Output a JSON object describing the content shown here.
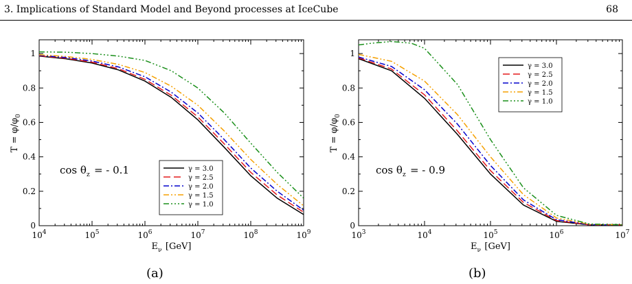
{
  "header": {
    "title": "3. Implications of Standard Model and Beyond processes at IceCube",
    "page_number": "68"
  },
  "captions": [
    "(a)",
    "(b)"
  ],
  "chart_data": [
    {
      "type": "line",
      "title": "",
      "xlabel": "Eν [GeV]",
      "ylabel": "T = φ/φ0",
      "xscale": "log",
      "xlim": [
        10000,
        1000000000
      ],
      "ylim": [
        0,
        1.08
      ],
      "xticks": [
        10000,
        100000,
        1000000,
        10000000,
        100000000,
        1000000000
      ],
      "xtick_labels": [
        "10^4",
        "10^5",
        "10^6",
        "10^7",
        "10^8",
        "10^9"
      ],
      "yticks": [
        0,
        0.2,
        0.4,
        0.6,
        0.8,
        1
      ],
      "ytick_labels": [
        "0",
        "0.2",
        "0.4",
        "0.6",
        "0.8",
        "1"
      ],
      "annotation": "cos θz = - 0.1",
      "legend_position": "bottom-right",
      "grid": false,
      "series": [
        {
          "name": "γ = 3.0",
          "color": "#000000",
          "dash": "solid",
          "x": [
            10000,
            31623,
            100000,
            316228,
            1000000,
            3162278,
            10000000,
            31622777,
            100000000,
            316227766,
            1000000000
          ],
          "y": [
            0.985,
            0.97,
            0.945,
            0.905,
            0.84,
            0.745,
            0.615,
            0.455,
            0.29,
            0.16,
            0.065
          ]
        },
        {
          "name": "γ = 2.5",
          "color": "#e41a1c",
          "dash": "long-dash",
          "x": [
            10000,
            31623,
            100000,
            316228,
            1000000,
            3162278,
            10000000,
            31622777,
            100000000,
            316227766,
            1000000000
          ],
          "y": [
            0.987,
            0.973,
            0.95,
            0.912,
            0.85,
            0.757,
            0.632,
            0.475,
            0.31,
            0.178,
            0.078
          ]
        },
        {
          "name": "γ = 2.0",
          "color": "#0000cc",
          "dash": "dash-dot",
          "x": [
            10000,
            31623,
            100000,
            316228,
            1000000,
            3162278,
            10000000,
            31622777,
            100000000,
            316227766,
            1000000000
          ],
          "y": [
            0.99,
            0.977,
            0.957,
            0.922,
            0.865,
            0.775,
            0.655,
            0.5,
            0.335,
            0.2,
            0.09
          ]
        },
        {
          "name": "γ = 1.5",
          "color": "#f5a000",
          "dash": "dash-dot-dot",
          "x": [
            10000,
            31623,
            100000,
            316228,
            1000000,
            3162278,
            10000000,
            31622777,
            100000000,
            316227766,
            1000000000
          ],
          "y": [
            0.993,
            0.983,
            0.966,
            0.937,
            0.89,
            0.81,
            0.7,
            0.55,
            0.385,
            0.24,
            0.115
          ]
        },
        {
          "name": "γ = 1.0",
          "color": "#1a8f1a",
          "dash": "dash-dot-dot-dot",
          "x": [
            10000,
            31623,
            100000,
            316228,
            1000000,
            3162278,
            10000000,
            31622777,
            100000000,
            316227766,
            1000000000
          ],
          "y": [
            1.01,
            1.008,
            1.0,
            0.985,
            0.96,
            0.9,
            0.8,
            0.655,
            0.48,
            0.31,
            0.16
          ]
        }
      ]
    },
    {
      "type": "line",
      "title": "",
      "xlabel": "Eν [GeV]",
      "ylabel": "T = φ/φ0",
      "xscale": "log",
      "xlim": [
        1000,
        10000000
      ],
      "ylim": [
        0,
        1.08
      ],
      "xticks": [
        1000,
        10000,
        100000,
        1000000,
        10000000
      ],
      "xtick_labels": [
        "10^3",
        "10^4",
        "10^5",
        "10^6",
        "10^7"
      ],
      "yticks": [
        0,
        0.2,
        0.4,
        0.6,
        0.8,
        1
      ],
      "ytick_labels": [
        "0",
        "0.2",
        "0.4",
        "0.6",
        "0.8",
        "1"
      ],
      "annotation": "cos θz = - 0.9",
      "legend_position": "top-right",
      "grid": false,
      "series": [
        {
          "name": "γ = 3.0",
          "color": "#000000",
          "dash": "solid",
          "x": [
            1000,
            3162,
            10000,
            31623,
            100000,
            316228,
            1000000,
            3162278,
            10000000
          ],
          "y": [
            0.97,
            0.9,
            0.74,
            0.53,
            0.3,
            0.12,
            0.025,
            0.005,
            0.005
          ]
        },
        {
          "name": "γ = 2.5",
          "color": "#e41a1c",
          "dash": "long-dash",
          "x": [
            1000,
            3162,
            10000,
            31623,
            100000,
            316228,
            1000000,
            3162278,
            10000000
          ],
          "y": [
            0.975,
            0.91,
            0.76,
            0.55,
            0.32,
            0.135,
            0.03,
            0.005,
            0.005
          ]
        },
        {
          "name": "γ = 2.0",
          "color": "#0000cc",
          "dash": "dash-dot",
          "x": [
            1000,
            3162,
            10000,
            31623,
            100000,
            316228,
            1000000,
            3162278,
            10000000
          ],
          "y": [
            0.98,
            0.925,
            0.79,
            0.59,
            0.35,
            0.15,
            0.035,
            0.006,
            0.005
          ]
        },
        {
          "name": "γ = 1.5",
          "color": "#f5a000",
          "dash": "dash-dot-dot",
          "x": [
            1000,
            3162,
            10000,
            31623,
            100000,
            316228,
            1000000,
            3162278,
            10000000
          ],
          "y": [
            0.995,
            0.955,
            0.84,
            0.645,
            0.4,
            0.18,
            0.045,
            0.008,
            0.005
          ]
        },
        {
          "name": "γ = 1.0",
          "color": "#1a8f1a",
          "dash": "dash-dot-dot-dot",
          "x": [
            1000,
            1585,
            3162,
            6310,
            10000,
            31623,
            100000,
            316228,
            1000000,
            3162278,
            10000000
          ],
          "y": [
            1.05,
            1.06,
            1.07,
            1.06,
            1.03,
            0.82,
            0.5,
            0.22,
            0.06,
            0.01,
            0.005
          ]
        }
      ]
    }
  ]
}
